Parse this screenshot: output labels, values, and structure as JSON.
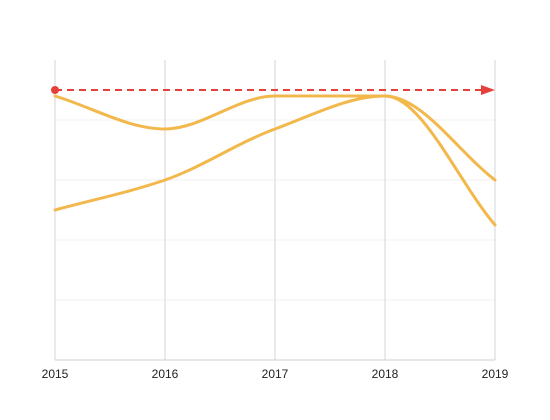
{
  "chart_data": {
    "type": "line",
    "x": [
      2015,
      2016,
      2017,
      2018,
      2019
    ],
    "xtick_labels": [
      "2015",
      "2016",
      "2017",
      "2018",
      "2019"
    ],
    "title": "",
    "xlabel": "",
    "ylabel": "",
    "ylim": [
      0,
      100
    ],
    "grid": "vertical lines on, faint horizontal lines",
    "legend": "none",
    "series": [
      {
        "values": [
          88,
          77,
          88,
          88,
          45
        ],
        "color": "#f2b84b"
      },
      {
        "values": [
          50,
          60,
          77,
          88,
          60
        ],
        "color": "#f2b84b"
      }
    ],
    "annotations": [
      {
        "type": "reference-arrow",
        "x_start": 2015,
        "x_end": 2019,
        "y": 90,
        "color": "#e5403a",
        "style": "dashed"
      }
    ]
  }
}
